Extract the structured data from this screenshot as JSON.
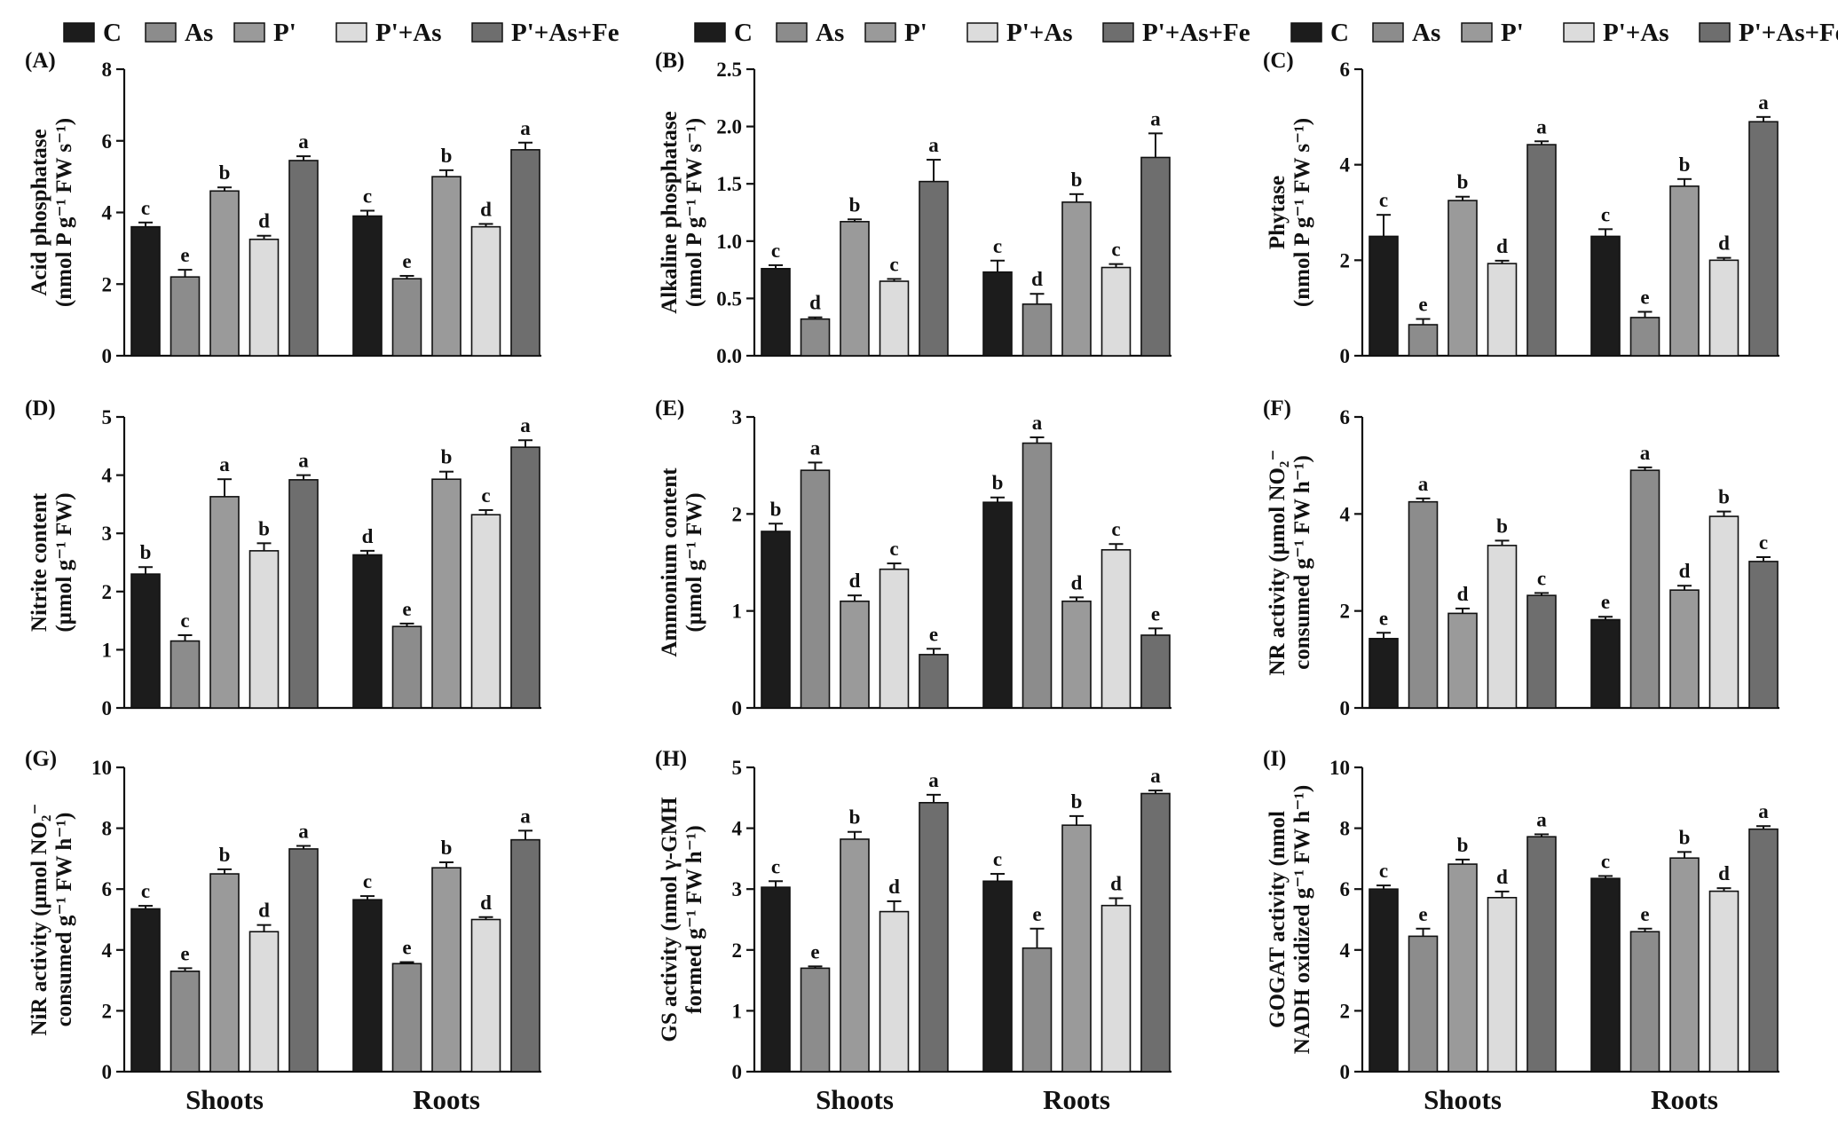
{
  "colors": {
    "C": "#1c1c1c",
    "As": "#8c8c8c",
    "P'": "#9a9a9a",
    "P'+As": "#dcdcdc",
    "P'+As+Fe": "#6e6e6e"
  },
  "legend": [
    "C",
    "As",
    "P'",
    "P'+As",
    "P'+As+Fe"
  ],
  "chart_data": [
    {
      "type": "bar",
      "panel": "(A)",
      "ylabel": [
        "Acid phosphatase",
        "(nmol P g⁻¹ FW s⁻¹)"
      ],
      "ylim": [
        0,
        8
      ],
      "yticks": [
        "0",
        "2",
        "4",
        "6",
        "8"
      ],
      "categories": [
        "Shoots",
        "Roots"
      ],
      "series": [
        {
          "name": "C",
          "values": [
            3.6,
            3.9
          ],
          "err": [
            0.12,
            0.15
          ],
          "letters": [
            "c",
            "c"
          ]
        },
        {
          "name": "As",
          "values": [
            2.2,
            2.15
          ],
          "err": [
            0.2,
            0.08
          ],
          "letters": [
            "e",
            "e"
          ]
        },
        {
          "name": "P'",
          "values": [
            4.6,
            5.0
          ],
          "err": [
            0.1,
            0.18
          ],
          "letters": [
            "b",
            "b"
          ]
        },
        {
          "name": "P'+As",
          "values": [
            3.25,
            3.6
          ],
          "err": [
            0.1,
            0.08
          ],
          "letters": [
            "d",
            "d"
          ]
        },
        {
          "name": "P'+As+Fe",
          "values": [
            5.45,
            5.75
          ],
          "err": [
            0.12,
            0.2
          ],
          "letters": [
            "a",
            "a"
          ]
        }
      ]
    },
    {
      "type": "bar",
      "panel": "(B)",
      "ylabel": [
        "Alkaline phosphatase",
        "(nmol P g⁻¹ FW s⁻¹)"
      ],
      "ylim": [
        0,
        2.5
      ],
      "yticks": [
        "0.0",
        "0.5",
        "1.0",
        "1.5",
        "2.0",
        "2.5"
      ],
      "categories": [
        "Shoots",
        "Roots"
      ],
      "series": [
        {
          "name": "C",
          "values": [
            0.76,
            0.73
          ],
          "err": [
            0.03,
            0.1
          ],
          "letters": [
            "c",
            "c"
          ]
        },
        {
          "name": "As",
          "values": [
            0.32,
            0.45
          ],
          "err": [
            0.015,
            0.09
          ],
          "letters": [
            "d",
            "d"
          ]
        },
        {
          "name": "P'",
          "values": [
            1.17,
            1.34
          ],
          "err": [
            0.02,
            0.07
          ],
          "letters": [
            "b",
            "b"
          ]
        },
        {
          "name": "P'+As",
          "values": [
            0.65,
            0.77
          ],
          "err": [
            0.02,
            0.03
          ],
          "letters": [
            "c",
            "c"
          ]
        },
        {
          "name": "P'+As+Fe",
          "values": [
            1.52,
            1.73
          ],
          "err": [
            0.19,
            0.21
          ],
          "letters": [
            "a",
            "a"
          ]
        }
      ]
    },
    {
      "type": "bar",
      "panel": "(C)",
      "ylabel": [
        "Phytase",
        "(nmol P g⁻¹ FW s⁻¹)"
      ],
      "ylim": [
        0,
        6
      ],
      "yticks": [
        "0",
        "2",
        "4",
        "6"
      ],
      "categories": [
        "Shoots",
        "Roots"
      ],
      "series": [
        {
          "name": "C",
          "values": [
            2.5,
            2.5
          ],
          "err": [
            0.45,
            0.15
          ],
          "letters": [
            "c",
            "c"
          ]
        },
        {
          "name": "As",
          "values": [
            0.65,
            0.8
          ],
          "err": [
            0.12,
            0.12
          ],
          "letters": [
            "e",
            "e"
          ]
        },
        {
          "name": "P'",
          "values": [
            3.25,
            3.55
          ],
          "err": [
            0.08,
            0.15
          ],
          "letters": [
            "b",
            "b"
          ]
        },
        {
          "name": "P'+As",
          "values": [
            1.93,
            2.0
          ],
          "err": [
            0.06,
            0.05
          ],
          "letters": [
            "d",
            "d"
          ]
        },
        {
          "name": "P'+As+Fe",
          "values": [
            4.42,
            4.9
          ],
          "err": [
            0.07,
            0.1
          ],
          "letters": [
            "a",
            "a"
          ]
        }
      ]
    },
    {
      "type": "bar",
      "panel": "(D)",
      "ylabel": [
        "Nitrite content",
        "(µmol g⁻¹ FW)"
      ],
      "ylim": [
        0,
        5
      ],
      "yticks": [
        "0",
        "1",
        "2",
        "3",
        "4",
        "5"
      ],
      "categories": [
        "Shoots",
        "Roots"
      ],
      "series": [
        {
          "name": "C",
          "values": [
            2.3,
            2.63
          ],
          "err": [
            0.12,
            0.07
          ],
          "letters": [
            "b",
            "d"
          ]
        },
        {
          "name": "As",
          "values": [
            1.15,
            1.4
          ],
          "err": [
            0.1,
            0.05
          ],
          "letters": [
            "c",
            "e"
          ]
        },
        {
          "name": "P'",
          "values": [
            3.63,
            3.93
          ],
          "err": [
            0.3,
            0.13
          ],
          "letters": [
            "a",
            "b"
          ]
        },
        {
          "name": "P'+As",
          "values": [
            2.7,
            3.32
          ],
          "err": [
            0.13,
            0.08
          ],
          "letters": [
            "b",
            "c"
          ]
        },
        {
          "name": "P'+As+Fe",
          "values": [
            3.92,
            4.48
          ],
          "err": [
            0.08,
            0.12
          ],
          "letters": [
            "a",
            "a"
          ]
        }
      ]
    },
    {
      "type": "bar",
      "panel": "(E)",
      "ylabel": [
        "Ammonium content",
        "(µmol g⁻¹ FW)"
      ],
      "ylim": [
        0,
        3
      ],
      "yticks": [
        "0",
        "1",
        "2",
        "3"
      ],
      "categories": [
        "Shoots",
        "Roots"
      ],
      "series": [
        {
          "name": "C",
          "values": [
            1.82,
            2.12
          ],
          "err": [
            0.08,
            0.05
          ],
          "letters": [
            "b",
            "b"
          ]
        },
        {
          "name": "As",
          "values": [
            2.45,
            2.73
          ],
          "err": [
            0.08,
            0.06
          ],
          "letters": [
            "a",
            "a"
          ]
        },
        {
          "name": "P'",
          "values": [
            1.1,
            1.1
          ],
          "err": [
            0.06,
            0.04
          ],
          "letters": [
            "d",
            "d"
          ]
        },
        {
          "name": "P'+As",
          "values": [
            1.43,
            1.63
          ],
          "err": [
            0.06,
            0.06
          ],
          "letters": [
            "c",
            "c"
          ]
        },
        {
          "name": "P'+As+Fe",
          "values": [
            0.55,
            0.75
          ],
          "err": [
            0.06,
            0.07
          ],
          "letters": [
            "e",
            "e"
          ]
        }
      ]
    },
    {
      "type": "bar",
      "panel": "(F)",
      "ylabel": [
        "NR activity (µmol NO₂⁻",
        "consumed g⁻¹ FW h⁻¹)"
      ],
      "ylim": [
        0,
        6
      ],
      "yticks": [
        "0",
        "2",
        "4",
        "6"
      ],
      "categories": [
        "Shoots",
        "Roots"
      ],
      "series": [
        {
          "name": "C",
          "values": [
            1.43,
            1.82
          ],
          "err": [
            0.12,
            0.06
          ],
          "letters": [
            "e",
            "e"
          ]
        },
        {
          "name": "As",
          "values": [
            4.25,
            4.9
          ],
          "err": [
            0.07,
            0.06
          ],
          "letters": [
            "a",
            "a"
          ]
        },
        {
          "name": "P'",
          "values": [
            1.95,
            2.43
          ],
          "err": [
            0.1,
            0.09
          ],
          "letters": [
            "d",
            "d"
          ]
        },
        {
          "name": "P'+As",
          "values": [
            3.35,
            3.95
          ],
          "err": [
            0.1,
            0.1
          ],
          "letters": [
            "b",
            "b"
          ]
        },
        {
          "name": "P'+As+Fe",
          "values": [
            2.32,
            3.02
          ],
          "err": [
            0.05,
            0.09
          ],
          "letters": [
            "c",
            "c"
          ]
        }
      ]
    },
    {
      "type": "bar",
      "panel": "(G)",
      "ylabel": [
        "NiR activity (µmol NO₂⁻",
        "consumed g⁻¹ FW h⁻¹)"
      ],
      "ylim": [
        0,
        10
      ],
      "yticks": [
        "0",
        "2",
        "4",
        "6",
        "8",
        "10"
      ],
      "xlabel_groups": [
        "Shoots",
        "Roots"
      ],
      "categories": [
        "Shoots",
        "Roots"
      ],
      "series": [
        {
          "name": "C",
          "values": [
            5.35,
            5.65
          ],
          "err": [
            0.1,
            0.12
          ],
          "letters": [
            "c",
            "c"
          ]
        },
        {
          "name": "As",
          "values": [
            3.3,
            3.55
          ],
          "err": [
            0.1,
            0.05
          ],
          "letters": [
            "e",
            "e"
          ]
        },
        {
          "name": "P'",
          "values": [
            6.5,
            6.7
          ],
          "err": [
            0.15,
            0.18
          ],
          "letters": [
            "b",
            "b"
          ]
        },
        {
          "name": "P'+As",
          "values": [
            4.6,
            5.0
          ],
          "err": [
            0.22,
            0.08
          ],
          "letters": [
            "d",
            "d"
          ]
        },
        {
          "name": "P'+As+Fe",
          "values": [
            7.32,
            7.62
          ],
          "err": [
            0.1,
            0.3
          ],
          "letters": [
            "a",
            "a"
          ]
        }
      ]
    },
    {
      "type": "bar",
      "panel": "(H)",
      "ylabel": [
        "GS activity (nmol γ-GMH",
        "formed g⁻¹ FW h⁻¹)"
      ],
      "ylim": [
        0,
        5
      ],
      "yticks": [
        "0",
        "1",
        "2",
        "3",
        "4",
        "5"
      ],
      "categories": [
        "Shoots",
        "Roots"
      ],
      "series": [
        {
          "name": "C",
          "values": [
            3.03,
            3.13
          ],
          "err": [
            0.1,
            0.12
          ],
          "letters": [
            "c",
            "c"
          ]
        },
        {
          "name": "As",
          "values": [
            1.7,
            2.03
          ],
          "err": [
            0.03,
            0.32
          ],
          "letters": [
            "e",
            "e"
          ]
        },
        {
          "name": "P'",
          "values": [
            3.82,
            4.05
          ],
          "err": [
            0.12,
            0.15
          ],
          "letters": [
            "b",
            "b"
          ]
        },
        {
          "name": "P'+As",
          "values": [
            2.63,
            2.73
          ],
          "err": [
            0.17,
            0.12
          ],
          "letters": [
            "d",
            "d"
          ]
        },
        {
          "name": "P'+As+Fe",
          "values": [
            4.42,
            4.57
          ],
          "err": [
            0.13,
            0.05
          ],
          "letters": [
            "a",
            "a"
          ]
        }
      ]
    },
    {
      "type": "bar",
      "panel": "(I)",
      "ylabel": [
        "GOGAT activity (nmol",
        "NADH oxidized g⁻¹ FW h⁻¹)"
      ],
      "ylim": [
        0,
        10
      ],
      "yticks": [
        "0",
        "2",
        "4",
        "6",
        "8",
        "10"
      ],
      "categories": [
        "Shoots",
        "Roots"
      ],
      "series": [
        {
          "name": "C",
          "values": [
            6.0,
            6.35
          ],
          "err": [
            0.12,
            0.08
          ],
          "letters": [
            "c",
            "c"
          ]
        },
        {
          "name": "As",
          "values": [
            4.45,
            4.6
          ],
          "err": [
            0.25,
            0.1
          ],
          "letters": [
            "e",
            "e"
          ]
        },
        {
          "name": "P'",
          "values": [
            6.82,
            7.02
          ],
          "err": [
            0.15,
            0.2
          ],
          "letters": [
            "b",
            "b"
          ]
        },
        {
          "name": "P'+As",
          "values": [
            5.72,
            5.93
          ],
          "err": [
            0.2,
            0.1
          ],
          "letters": [
            "d",
            "d"
          ]
        },
        {
          "name": "P'+As+Fe",
          "values": [
            7.72,
            7.97
          ],
          "err": [
            0.08,
            0.1
          ],
          "letters": [
            "a",
            "a"
          ]
        }
      ]
    }
  ]
}
